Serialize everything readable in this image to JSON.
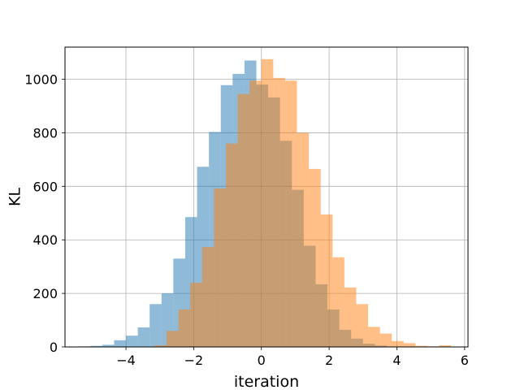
{
  "chart_data": {
    "type": "histogram",
    "title": "",
    "xlabel": "iteration",
    "ylabel": "KL",
    "xlim": [
      -5.8,
      6.1
    ],
    "ylim": [
      0,
      1120
    ],
    "xticks": [
      -4,
      -2,
      0,
      2,
      4,
      6
    ],
    "xtick_labels": [
      "−4",
      "−2",
      "0",
      "2",
      "4",
      "6"
    ],
    "yticks": [
      0,
      200,
      400,
      600,
      800,
      1000
    ],
    "ytick_labels": [
      "0",
      "200",
      "400",
      "600",
      "800",
      "1000"
    ],
    "grid": true,
    "legend": false,
    "series": [
      {
        "color": "#1f77b4",
        "opacity": 0.5,
        "bins": [
          {
            "x0": -5.4,
            "x1": -5.05,
            "count": 2
          },
          {
            "x0": -5.05,
            "x1": -4.7,
            "count": 4
          },
          {
            "x0": -4.7,
            "x1": -4.35,
            "count": 8
          },
          {
            "x0": -4.35,
            "x1": -4.0,
            "count": 25
          },
          {
            "x0": -4.0,
            "x1": -3.65,
            "count": 42
          },
          {
            "x0": -3.65,
            "x1": -3.3,
            "count": 73
          },
          {
            "x0": -3.3,
            "x1": -2.95,
            "count": 160
          },
          {
            "x0": -2.95,
            "x1": -2.6,
            "count": 200
          },
          {
            "x0": -2.6,
            "x1": -2.25,
            "count": 330
          },
          {
            "x0": -2.25,
            "x1": -1.9,
            "count": 485
          },
          {
            "x0": -1.9,
            "x1": -1.55,
            "count": 673
          },
          {
            "x0": -1.55,
            "x1": -1.2,
            "count": 803
          },
          {
            "x0": -1.2,
            "x1": -0.85,
            "count": 978
          },
          {
            "x0": -0.85,
            "x1": -0.5,
            "count": 1020
          },
          {
            "x0": -0.5,
            "x1": -0.15,
            "count": 1070
          },
          {
            "x0": -0.15,
            "x1": 0.2,
            "count": 980
          },
          {
            "x0": 0.2,
            "x1": 0.55,
            "count": 932
          },
          {
            "x0": 0.55,
            "x1": 0.9,
            "count": 770
          },
          {
            "x0": 0.9,
            "x1": 1.25,
            "count": 587
          },
          {
            "x0": 1.25,
            "x1": 1.6,
            "count": 378
          },
          {
            "x0": 1.6,
            "x1": 1.95,
            "count": 234
          },
          {
            "x0": 1.95,
            "x1": 2.3,
            "count": 140
          },
          {
            "x0": 2.3,
            "x1": 2.65,
            "count": 64
          },
          {
            "x0": 2.65,
            "x1": 3.0,
            "count": 31
          },
          {
            "x0": 3.0,
            "x1": 3.35,
            "count": 12
          },
          {
            "x0": 3.35,
            "x1": 3.7,
            "count": 5
          }
        ]
      },
      {
        "color": "#ff7f0e",
        "opacity": 0.5,
        "bins": [
          {
            "x0": -3.15,
            "x1": -2.8,
            "count": 6
          },
          {
            "x0": -2.8,
            "x1": -2.45,
            "count": 60
          },
          {
            "x0": -2.45,
            "x1": -2.1,
            "count": 140
          },
          {
            "x0": -2.1,
            "x1": -1.75,
            "count": 240
          },
          {
            "x0": -1.75,
            "x1": -1.4,
            "count": 373
          },
          {
            "x0": -1.4,
            "x1": -1.05,
            "count": 592
          },
          {
            "x0": -1.05,
            "x1": -0.7,
            "count": 760
          },
          {
            "x0": -0.7,
            "x1": -0.35,
            "count": 945
          },
          {
            "x0": -0.35,
            "x1": 0.0,
            "count": 995
          },
          {
            "x0": 0.0,
            "x1": 0.35,
            "count": 1075
          },
          {
            "x0": 0.35,
            "x1": 0.7,
            "count": 1005
          },
          {
            "x0": 0.7,
            "x1": 1.05,
            "count": 995
          },
          {
            "x0": 1.05,
            "x1": 1.4,
            "count": 800
          },
          {
            "x0": 1.4,
            "x1": 1.75,
            "count": 665
          },
          {
            "x0": 1.75,
            "x1": 2.1,
            "count": 495
          },
          {
            "x0": 2.1,
            "x1": 2.45,
            "count": 335
          },
          {
            "x0": 2.45,
            "x1": 2.8,
            "count": 222
          },
          {
            "x0": 2.8,
            "x1": 3.15,
            "count": 160
          },
          {
            "x0": 3.15,
            "x1": 3.5,
            "count": 75
          },
          {
            "x0": 3.5,
            "x1": 3.85,
            "count": 50
          },
          {
            "x0": 3.85,
            "x1": 4.2,
            "count": 22
          },
          {
            "x0": 4.2,
            "x1": 4.55,
            "count": 14
          },
          {
            "x0": 4.55,
            "x1": 4.9,
            "count": 4
          },
          {
            "x0": 4.9,
            "x1": 5.25,
            "count": 2
          },
          {
            "x0": 5.25,
            "x1": 5.6,
            "count": 6
          }
        ]
      }
    ]
  }
}
